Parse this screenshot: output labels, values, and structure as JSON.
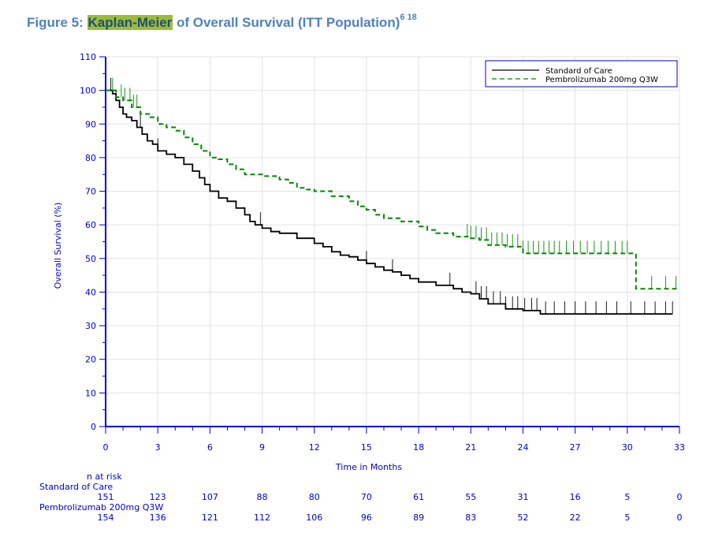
{
  "figure": {
    "prefix": "Figure 5: ",
    "highlight": "Kaplan-Meier",
    "rest": " of Overall Survival (ITT Population)",
    "superscript": "6 18"
  },
  "chart_data": {
    "type": "line",
    "xlabel": "Time in Months",
    "ylabel": "Overall Survival (%)",
    "xlim": [
      0,
      33
    ],
    "ylim": [
      0,
      110
    ],
    "xticks": [
      0,
      3,
      6,
      9,
      12,
      15,
      18,
      21,
      24,
      27,
      30,
      33
    ],
    "yticks": [
      0,
      10,
      20,
      30,
      40,
      50,
      60,
      70,
      80,
      90,
      100,
      110
    ],
    "legend_position": "top-right",
    "series": [
      {
        "name": "Standard of Care",
        "color": "#000000",
        "style": "solid",
        "x": [
          0,
          0.4,
          0.6,
          0.8,
          1.0,
          1.2,
          1.5,
          1.8,
          2.1,
          2.4,
          2.7,
          3.0,
          3.5,
          4.0,
          4.5,
          5.0,
          5.4,
          5.7,
          6.0,
          6.5,
          7.0,
          7.5,
          8.0,
          8.3,
          8.6,
          9.0,
          9.5,
          10.0,
          11.0,
          12.0,
          12.5,
          13.0,
          13.5,
          14.0,
          14.5,
          15.0,
          15.5,
          16.0,
          16.5,
          17.0,
          17.5,
          18.0,
          19.0,
          20.0,
          20.5,
          21.0,
          21.5,
          22.0,
          23.0,
          24.0,
          25.0,
          27.0,
          30.0,
          32.6
        ],
        "y": [
          100,
          99,
          97,
          95,
          93,
          92,
          91,
          89,
          87,
          85,
          84,
          82,
          81,
          80,
          78,
          76,
          74,
          72,
          70,
          68,
          67,
          65,
          63,
          61,
          60,
          59,
          58,
          57.5,
          56,
          54.5,
          53.5,
          52,
          51,
          50.5,
          49.5,
          48.5,
          47.5,
          46.5,
          46,
          45,
          44,
          43,
          42,
          41,
          40,
          39.5,
          38,
          36.5,
          35,
          34.5,
          33.5,
          33.5,
          33.5,
          33.5
        ],
        "censor_x": [
          0.3,
          2.0,
          3.0,
          8.9,
          15.0,
          16.5,
          19.8,
          21.3,
          21.6,
          21.9,
          22.3,
          22.7,
          23.0,
          23.4,
          23.7,
          24.1,
          24.5,
          24.8,
          25.3,
          25.8,
          26.4,
          27.0,
          27.6,
          28.2,
          28.8,
          29.4,
          30.2,
          31.0,
          31.6,
          32.2,
          32.6
        ],
        "at_risk": [
          151,
          123,
          107,
          88,
          80,
          70,
          61,
          55,
          31,
          16,
          5,
          0
        ]
      },
      {
        "name": "Pembrolizumab 200mg Q3W",
        "color": "#008800",
        "style": "dashed",
        "x": [
          0,
          0.6,
          1.0,
          1.5,
          2.0,
          2.5,
          3.0,
          3.5,
          4.0,
          4.5,
          5.0,
          5.5,
          6.0,
          6.5,
          7.0,
          7.5,
          8.0,
          9.0,
          10.0,
          10.5,
          11.0,
          11.5,
          12.0,
          13.0,
          14.0,
          14.5,
          15.0,
          15.5,
          16.0,
          17.0,
          18.0,
          18.5,
          19.0,
          20.0,
          21.0,
          21.5,
          22.0,
          23.0,
          24.0,
          25.0,
          27.0,
          29.0,
          30.0,
          30.5,
          33.0
        ],
        "y": [
          100,
          98,
          97,
          95,
          93,
          92,
          90,
          89,
          88,
          86,
          84,
          82,
          80,
          79.5,
          78,
          76.5,
          75,
          74.5,
          73.5,
          72.5,
          71,
          70.5,
          70,
          68.5,
          67,
          65.5,
          64.5,
          63,
          62,
          61,
          59.5,
          58.5,
          57.5,
          56.5,
          56,
          55.5,
          54,
          53.5,
          51.5,
          51.5,
          51.5,
          51.5,
          51.5,
          41,
          41
        ],
        "censor_x": [
          0.4,
          0.9,
          1.1,
          1.4,
          1.6,
          1.8,
          20.8,
          21.0,
          21.3,
          21.6,
          21.9,
          22.2,
          22.5,
          22.8,
          23.1,
          23.4,
          23.7,
          24.0,
          24.3,
          24.6,
          24.9,
          25.2,
          25.5,
          25.8,
          26.1,
          26.5,
          26.9,
          27.3,
          27.7,
          28.1,
          28.5,
          28.9,
          29.3,
          29.7,
          30.0,
          31.4,
          32.2,
          32.8
        ],
        "at_risk": [
          154,
          136,
          121,
          112,
          106,
          96,
          89,
          83,
          52,
          22,
          5,
          0
        ]
      }
    ],
    "at_risk_title": "n at risk"
  }
}
